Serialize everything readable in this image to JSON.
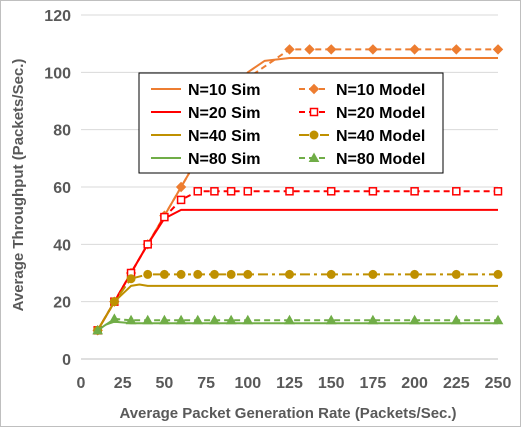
{
  "chart_data": {
    "type": "line",
    "title": "",
    "xlabel": "Average Packet Generation Rate (Packets/Sec.)",
    "ylabel": "Average Throughput (Packets/Sec.)",
    "xlim": [
      0,
      250
    ],
    "ylim": [
      0,
      120
    ],
    "xticks": [
      0,
      25,
      50,
      75,
      100,
      125,
      150,
      175,
      200,
      225,
      250
    ],
    "yticks": [
      0,
      20,
      40,
      60,
      80,
      100,
      120
    ],
    "grid": "horizontal",
    "legend_position": "center-left",
    "series": [
      {
        "name": "N=10 Sim",
        "color": "#ED7D31",
        "style": "solid",
        "marker": "none",
        "x": [
          10,
          20,
          30,
          40,
          50,
          60,
          70,
          80,
          90,
          100,
          110,
          125,
          150,
          175,
          200,
          225,
          250
        ],
        "y": [
          10,
          20,
          30,
          40,
          50,
          60,
          70,
          80,
          90,
          100,
          104,
          105,
          105,
          105,
          105,
          105,
          105
        ]
      },
      {
        "name": "N=10 Model",
        "color": "#ED7D31",
        "style": "dashed",
        "marker": "diamond",
        "x": [
          10,
          20,
          30,
          40,
          50,
          60,
          70,
          80,
          90,
          100,
          125,
          137,
          150,
          175,
          200,
          225,
          250
        ],
        "y": [
          10,
          20,
          30,
          40,
          50,
          60,
          70,
          80,
          90,
          98,
          108,
          108,
          108,
          108,
          108,
          108,
          108
        ]
      },
      {
        "name": "N=20 Sim",
        "color": "#FF0000",
        "style": "solid",
        "marker": "none",
        "x": [
          10,
          20,
          30,
          40,
          50,
          60,
          70,
          80,
          100,
          125,
          150,
          175,
          200,
          225,
          250
        ],
        "y": [
          10,
          20,
          30,
          40,
          49,
          52,
          52,
          52,
          52,
          52,
          52,
          52,
          52,
          52,
          52
        ]
      },
      {
        "name": "N=20 Model",
        "color": "#FF0000",
        "style": "dashed",
        "marker": "square",
        "x": [
          10,
          20,
          30,
          40,
          50,
          60,
          70,
          80,
          90,
          100,
          125,
          150,
          175,
          200,
          225,
          250
        ],
        "y": [
          10,
          20,
          30,
          40,
          49.5,
          55.5,
          58.5,
          58.5,
          58.5,
          58.5,
          58.5,
          58.5,
          58.5,
          58.5,
          58.5,
          58.5
        ]
      },
      {
        "name": "N=40 Sim",
        "color": "#BF9000",
        "style": "solid",
        "marker": "none",
        "x": [
          10,
          20,
          30,
          35,
          40,
          50,
          75,
          100,
          150,
          200,
          250
        ],
        "y": [
          10,
          20,
          25.5,
          26,
          25.5,
          25.5,
          25.5,
          25.5,
          25.5,
          25.5,
          25.5
        ]
      },
      {
        "name": "N=40 Model",
        "color": "#BF9000",
        "style": "dashdot",
        "marker": "circle",
        "x": [
          10,
          20,
          30,
          40,
          50,
          60,
          70,
          80,
          90,
          100,
          125,
          150,
          175,
          200,
          225,
          250
        ],
        "y": [
          10,
          20,
          28,
          29.5,
          29.5,
          29.5,
          29.5,
          29.5,
          29.5,
          29.5,
          29.5,
          29.5,
          29.5,
          29.5,
          29.5,
          29.5
        ]
      },
      {
        "name": "N=80 Sim",
        "color": "#70AD47",
        "style": "solid",
        "marker": "none",
        "x": [
          10,
          15,
          20,
          30,
          50,
          100,
          150,
          200,
          250
        ],
        "y": [
          10,
          12,
          13,
          12.5,
          12.5,
          12.5,
          12.5,
          12.5,
          12.5
        ]
      },
      {
        "name": "N=80 Model",
        "color": "#70AD47",
        "style": "dashed",
        "marker": "triangle",
        "x": [
          10,
          20,
          30,
          40,
          50,
          60,
          70,
          80,
          90,
          100,
          125,
          150,
          175,
          200,
          225,
          250
        ],
        "y": [
          10,
          14,
          13.5,
          13.5,
          13.5,
          13.5,
          13.5,
          13.5,
          13.5,
          13.5,
          13.5,
          13.5,
          13.5,
          13.5,
          13.5,
          13.5
        ]
      }
    ]
  }
}
